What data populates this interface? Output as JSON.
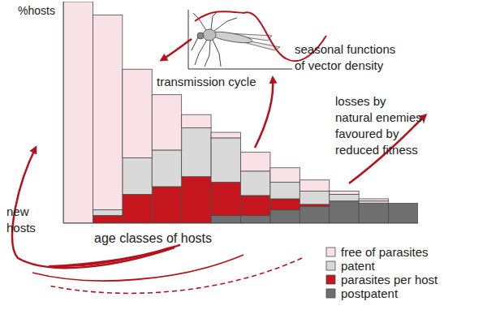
{
  "chart_data": {
    "type": "bar",
    "stacked": true,
    "grid": false,
    "tick_labels": false,
    "legend": "lower-right",
    "ylabel": "%hosts",
    "xlabel": "age classes of hosts",
    "categories": [
      null,
      null,
      null,
      null,
      null,
      null,
      null,
      null,
      null,
      null,
      null,
      null
    ],
    "ylim": [
      0,
      100
    ],
    "series": [
      {
        "name": "postpatent",
        "color": "#6f6f6f",
        "values": [
          0,
          0,
          0,
          0,
          0,
          3.5,
          3.5,
          6,
          7.5,
          10,
          9,
          9
        ]
      },
      {
        "name": "parasites per host",
        "color": "#c4161c",
        "values": [
          0,
          3.5,
          13,
          16.5,
          21,
          15,
          9,
          5,
          1,
          0,
          0,
          0
        ]
      },
      {
        "name": "patent",
        "color": "#d9d9d9",
        "values": [
          0,
          2.5,
          16.5,
          16.5,
          22,
          20,
          11,
          7.5,
          6,
          3,
          1,
          0
        ]
      },
      {
        "name": "free of parasites",
        "color": "#f9e2e7",
        "values": [
          100,
          88,
          40,
          25,
          6,
          2.5,
          8.5,
          6.5,
          5,
          1.5,
          1,
          0
        ]
      }
    ],
    "annotations": [
      {
        "text": [
          "transmission cycle"
        ]
      },
      {
        "text": [
          "seasonal functions",
          "of vector density"
        ]
      },
      {
        "text": [
          "losses by",
          "natural enemies,",
          "favoured by",
          "reduced fitness"
        ]
      },
      {
        "text": [
          "new",
          "hosts"
        ]
      }
    ]
  }
}
